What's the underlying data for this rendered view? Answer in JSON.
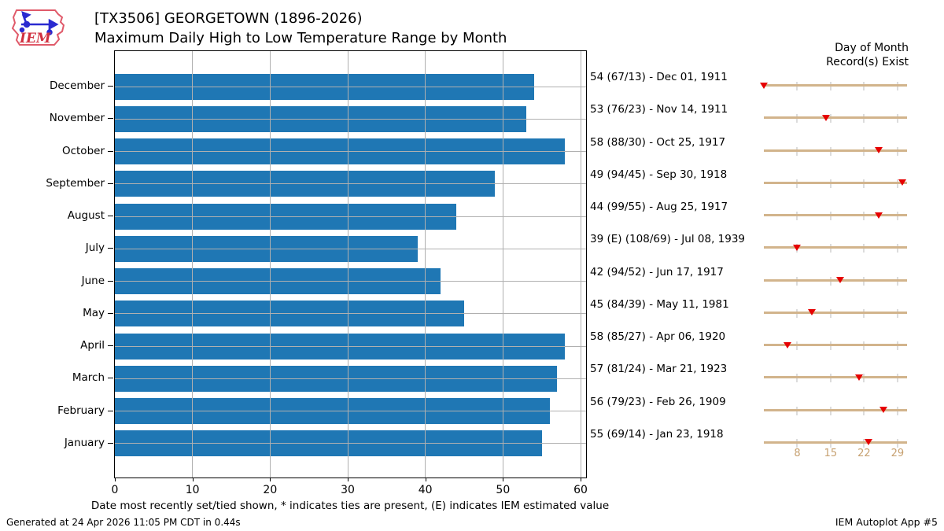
{
  "header": {
    "logo_text": "IEM",
    "title": "[TX3506] GEORGETOWN (1896-2026)",
    "subtitle": "Maximum Daily High to Low Temperature Range by Month"
  },
  "right_panel": {
    "header_line1": "Day of Month",
    "header_line2": "Record(s) Exist"
  },
  "caption": "Date most recently set/tied shown, * indicates ties are present, (E) indicates IEM estimated value",
  "footer": {
    "left": "Generated at 24 Apr 2026 11:05 PM CDT in 0.44s",
    "right": "IEM Autoplot App #5"
  },
  "chart_data": {
    "type": "bar",
    "orientation": "horizontal",
    "title": "[TX3506] GEORGETOWN (1896-2026)",
    "subtitle": "Maximum Daily High to Low Temperature Range by Month",
    "categories": [
      "December",
      "November",
      "October",
      "September",
      "August",
      "July",
      "June",
      "May",
      "April",
      "March",
      "February",
      "January"
    ],
    "values": [
      54,
      53,
      58,
      49,
      44,
      39,
      42,
      45,
      58,
      57,
      56,
      55
    ],
    "xticks": [
      0,
      10,
      20,
      30,
      40,
      50,
      60
    ],
    "xlim": [
      0,
      61
    ],
    "grid": true,
    "legend": "none",
    "bar_color": "#1f77b4",
    "grid_color": "#b0b0b0",
    "records": [
      {
        "month": "December",
        "label": "54 (67/13) - Dec 01, 1911",
        "day": 1
      },
      {
        "month": "November",
        "label": "53 (76/23) - Nov 14, 1911",
        "day": 14
      },
      {
        "month": "October",
        "label": "58 (88/30) - Oct 25, 1917",
        "day": 25
      },
      {
        "month": "September",
        "label": "49 (94/45) - Sep 30, 1918",
        "day": 30
      },
      {
        "month": "August",
        "label": "44 (99/55) - Aug 25, 1917",
        "day": 25
      },
      {
        "month": "July",
        "label": "39 (E) (108/69) - Jul 08, 1939",
        "day": 8
      },
      {
        "month": "June",
        "label": "42 (94/52) - Jun 17, 1917",
        "day": 17
      },
      {
        "month": "May",
        "label": "45 (84/39) - May 11, 1981",
        "day": 11
      },
      {
        "month": "April",
        "label": "58 (85/27) - Apr 06, 1920",
        "day": 6
      },
      {
        "month": "March",
        "label": "57 (81/24) - Mar 21, 1923",
        "day": 21
      },
      {
        "month": "February",
        "label": "56 (79/23) - Feb 26, 1909",
        "day": 26
      },
      {
        "month": "January",
        "label": "55 (69/14) - Jan 23, 1918",
        "day": 23
      }
    ],
    "day_axis": {
      "min": 1,
      "max": 31,
      "ticks": [
        8,
        15,
        22,
        29
      ],
      "line_color": "#d2b48c",
      "tick_color": "#dcdcdc",
      "tick_label_color": "#c7a171",
      "marker_color": "#e60000"
    }
  }
}
